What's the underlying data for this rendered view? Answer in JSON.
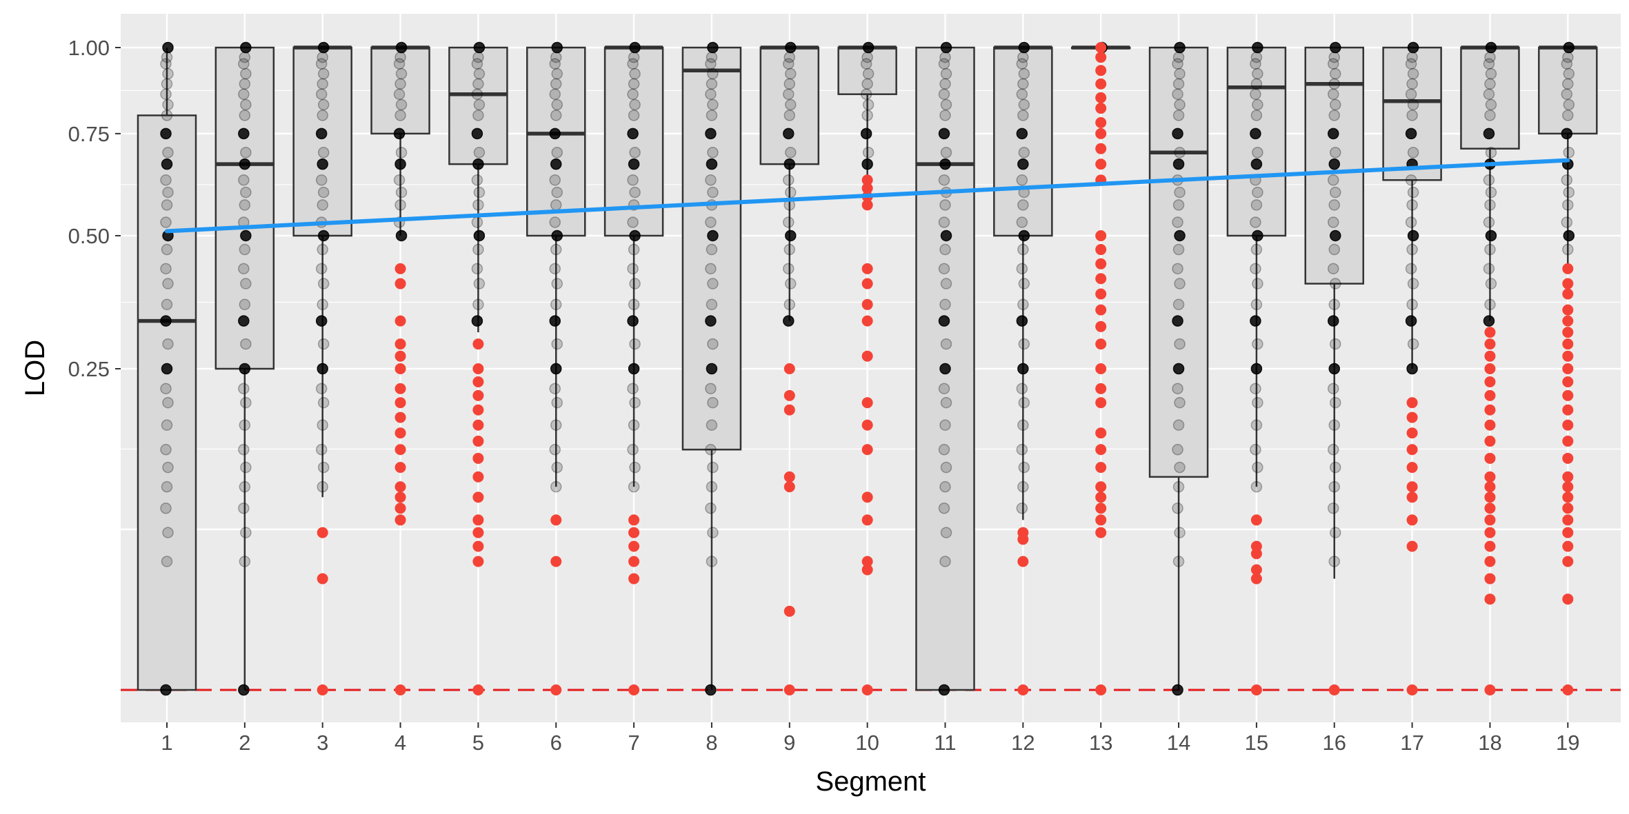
{
  "chart_data": {
    "type": "boxplot",
    "xlabel": "Segment",
    "ylabel": "LOD",
    "y_scale": "sqrt",
    "ylim": [
      0,
      1.05
    ],
    "grid": true,
    "categories": [
      "1",
      "2",
      "3",
      "4",
      "5",
      "6",
      "7",
      "8",
      "9",
      "10",
      "11",
      "12",
      "13",
      "14",
      "15",
      "16",
      "17",
      "18",
      "19"
    ],
    "y_ticks": [
      {
        "value": 0.25,
        "label": "0.25"
      },
      {
        "value": 0.5,
        "label": "0.50"
      },
      {
        "value": 0.75,
        "label": "0.75"
      },
      {
        "value": 1.0,
        "label": "1.00"
      }
    ],
    "boxes": [
      {
        "q1": 0.0,
        "median": 0.33,
        "q3": 0.8,
        "lower": 0.0,
        "upper": 1.0
      },
      {
        "q1": 0.25,
        "median": 0.67,
        "q3": 1.0,
        "lower": 0.0,
        "upper": 1.0
      },
      {
        "q1": 0.5,
        "median": 1.0,
        "q3": 1.0,
        "lower": 0.09,
        "upper": 1.0
      },
      {
        "q1": 0.75,
        "median": 1.0,
        "q3": 1.0,
        "lower": 0.5,
        "upper": 1.0
      },
      {
        "q1": 0.67,
        "median": 0.86,
        "q3": 1.0,
        "lower": 0.31,
        "upper": 1.0
      },
      {
        "q1": 0.5,
        "median": 0.75,
        "q3": 1.0,
        "lower": 0.1,
        "upper": 1.0
      },
      {
        "q1": 0.5,
        "median": 1.0,
        "q3": 1.0,
        "lower": 0.1,
        "upper": 1.0
      },
      {
        "q1": 0.14,
        "median": 0.93,
        "q3": 1.0,
        "lower": 0.0,
        "upper": 1.0
      },
      {
        "q1": 0.67,
        "median": 1.0,
        "q3": 1.0,
        "lower": 0.33,
        "upper": 1.0
      },
      {
        "q1": 0.86,
        "median": 1.0,
        "q3": 1.0,
        "lower": 0.64,
        "upper": 1.0
      },
      {
        "q1": 0.0,
        "median": 0.67,
        "q3": 1.0,
        "lower": 0.0,
        "upper": 1.0
      },
      {
        "q1": 0.5,
        "median": 1.0,
        "q3": 1.0,
        "lower": 0.07,
        "upper": 1.0
      },
      {
        "q1": 1.0,
        "median": 1.0,
        "q3": 1.0,
        "lower": 1.0,
        "upper": 1.0
      },
      {
        "q1": 0.11,
        "median": 0.7,
        "q3": 1.0,
        "lower": 0.0,
        "upper": 1.0
      },
      {
        "q1": 0.5,
        "median": 0.88,
        "q3": 1.0,
        "lower": 0.1,
        "upper": 1.0
      },
      {
        "q1": 0.4,
        "median": 0.89,
        "q3": 1.0,
        "lower": 0.03,
        "upper": 1.0
      },
      {
        "q1": 0.63,
        "median": 0.84,
        "q3": 1.0,
        "lower": 0.25,
        "upper": 1.0
      },
      {
        "q1": 0.71,
        "median": 1.0,
        "q3": 1.0,
        "lower": 0.33,
        "upper": 1.0
      },
      {
        "q1": 0.75,
        "median": 1.0,
        "q3": 1.0,
        "lower": 0.44,
        "upper": 1.0
      }
    ],
    "outliers": [
      [],
      [],
      [
        0.0,
        0.06,
        0.03
      ],
      [
        0.0,
        0.43,
        0.4,
        0.33,
        0.29,
        0.27,
        0.25,
        0.22,
        0.2,
        0.18,
        0.16,
        0.14,
        0.12,
        0.1,
        0.09,
        0.08,
        0.07
      ],
      [
        0.0,
        0.29,
        0.25,
        0.23,
        0.21,
        0.19,
        0.17,
        0.15,
        0.13,
        0.11,
        0.09,
        0.07,
        0.06,
        0.05,
        0.04
      ],
      [
        0.0,
        0.07,
        0.04
      ],
      [
        0.0,
        0.07,
        0.06,
        0.05,
        0.04,
        0.03
      ],
      [],
      [
        0.0,
        0.25,
        0.21,
        0.19,
        0.11,
        0.1,
        0.015
      ],
      [
        0.0,
        0.63,
        0.61,
        0.59,
        0.57,
        0.43,
        0.4,
        0.36,
        0.33,
        0.27,
        0.2,
        0.17,
        0.14,
        0.09,
        0.07,
        0.04,
        0.035
      ],
      [],
      [
        0.0,
        0.06,
        0.055,
        0.04
      ],
      [
        0.0,
        1.0,
        0.97,
        0.93,
        0.89,
        0.85,
        0.82,
        0.78,
        0.75,
        0.71,
        0.67,
        0.63,
        0.5,
        0.47,
        0.44,
        0.41,
        0.38,
        0.35,
        0.32,
        0.29,
        0.25,
        0.22,
        0.2,
        0.16,
        0.14,
        0.12,
        0.1,
        0.09,
        0.08,
        0.07,
        0.06
      ],
      [],
      [
        0.0,
        0.07,
        0.05,
        0.045,
        0.035,
        0.03
      ],
      [
        0.0
      ],
      [
        0.0,
        0.2,
        0.18,
        0.16,
        0.14,
        0.12,
        0.1,
        0.09,
        0.07,
        0.05
      ],
      [
        0.0,
        0.31,
        0.29,
        0.27,
        0.25,
        0.23,
        0.21,
        0.19,
        0.17,
        0.15,
        0.13,
        0.11,
        0.1,
        0.09,
        0.08,
        0.07,
        0.06,
        0.05,
        0.04,
        0.03,
        0.02
      ],
      [
        0.0,
        0.43,
        0.4,
        0.38,
        0.35,
        0.33,
        0.31,
        0.29,
        0.27,
        0.25,
        0.23,
        0.21,
        0.19,
        0.17,
        0.15,
        0.13,
        0.11,
        0.1,
        0.09,
        0.08,
        0.07,
        0.06,
        0.05,
        0.04,
        0.02
      ]
    ],
    "trend_line": {
      "x": [
        1,
        19
      ],
      "y": [
        0.51,
        0.68
      ]
    },
    "reference_line": {
      "y": 0.0
    },
    "colors": {
      "panel": "#ebebeb",
      "gridline": "#ffffff",
      "box_fill": "#d9d9d9",
      "box_line": "#333333",
      "point": "#000000",
      "outlier": "#f44336",
      "trend": "#2196f3",
      "reference": "#e31a1c",
      "tick_text": "#4d4d4d"
    }
  }
}
